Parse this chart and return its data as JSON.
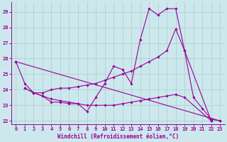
{
  "xlabel": "Windchill (Refroidissement éolien,°C)",
  "bg_color": "#cce8ec",
  "grid_color": "#aacccc",
  "line_color": "#990099",
  "xlim": [
    -0.5,
    23.5
  ],
  "ylim": [
    21.8,
    29.6
  ],
  "yticks": [
    22,
    23,
    24,
    25,
    26,
    27,
    28,
    29
  ],
  "xticks": [
    0,
    1,
    2,
    3,
    4,
    5,
    6,
    7,
    8,
    9,
    10,
    11,
    12,
    13,
    14,
    15,
    16,
    17,
    18,
    19,
    20,
    21,
    22,
    23
  ],
  "series1": [
    [
      0,
      25.8
    ],
    [
      1,
      24.4
    ],
    [
      2,
      23.8
    ],
    [
      3,
      23.6
    ],
    [
      4,
      23.2
    ],
    [
      5,
      23.2
    ],
    [
      6,
      23.1
    ],
    [
      7,
      23.1
    ],
    [
      8,
      22.6
    ],
    [
      9,
      23.5
    ],
    [
      10,
      24.4
    ],
    [
      11,
      25.5
    ],
    [
      12,
      25.3
    ],
    [
      13,
      24.4
    ],
    [
      14,
      27.2
    ],
    [
      15,
      29.2
    ],
    [
      16,
      28.8
    ],
    [
      17,
      29.2
    ],
    [
      18,
      29.2
    ],
    [
      19,
      26.5
    ],
    [
      20,
      23.5
    ],
    [
      21,
      22.8
    ],
    [
      22,
      22.1
    ],
    [
      23,
      22.0
    ]
  ],
  "series2": [
    [
      0,
      25.8
    ],
    [
      23,
      22.0
    ]
  ],
  "series3": [
    [
      1,
      24.1
    ],
    [
      2,
      23.8
    ],
    [
      3,
      23.8
    ],
    [
      4,
      24.0
    ],
    [
      5,
      24.1
    ],
    [
      6,
      24.1
    ],
    [
      7,
      24.2
    ],
    [
      8,
      24.3
    ],
    [
      9,
      24.4
    ],
    [
      10,
      24.6
    ],
    [
      11,
      24.8
    ],
    [
      12,
      25.0
    ],
    [
      13,
      25.2
    ],
    [
      14,
      25.5
    ],
    [
      15,
      25.8
    ],
    [
      16,
      26.1
    ],
    [
      17,
      26.5
    ],
    [
      18,
      27.9
    ],
    [
      19,
      26.5
    ],
    [
      22,
      22.0
    ]
  ],
  "series4": [
    [
      1,
      24.1
    ],
    [
      2,
      23.8
    ],
    [
      3,
      23.6
    ],
    [
      4,
      23.4
    ],
    [
      5,
      23.3
    ],
    [
      6,
      23.2
    ],
    [
      7,
      23.1
    ],
    [
      8,
      23.0
    ],
    [
      9,
      23.0
    ],
    [
      10,
      23.0
    ],
    [
      11,
      23.0
    ],
    [
      12,
      23.1
    ],
    [
      13,
      23.2
    ],
    [
      14,
      23.3
    ],
    [
      15,
      23.4
    ],
    [
      16,
      23.5
    ],
    [
      17,
      23.6
    ],
    [
      18,
      23.7
    ],
    [
      19,
      23.5
    ],
    [
      22,
      22.0
    ]
  ]
}
